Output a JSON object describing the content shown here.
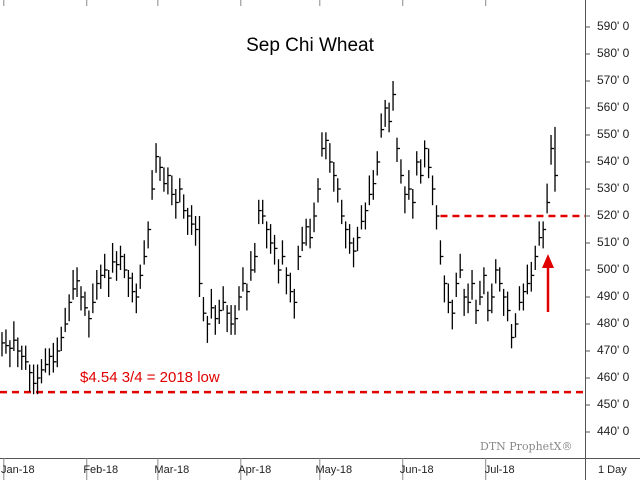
{
  "chart_data": {
    "type": "hlc",
    "title": "Sep Chi Wheat",
    "categories": [
      null,
      null,
      null,
      null,
      "Jan-18",
      null,
      null,
      null,
      null,
      null,
      null,
      null,
      null,
      null,
      null,
      null,
      null,
      null,
      null,
      null,
      null,
      null,
      null,
      null,
      null,
      "Feb-18",
      null,
      null,
      null,
      null,
      null,
      null,
      null,
      null,
      null,
      null,
      null,
      null,
      null,
      null,
      null,
      null,
      null,
      "Mar-18",
      null,
      null,
      null,
      null,
      null,
      null,
      null,
      null,
      null,
      null,
      null,
      null,
      null,
      null,
      null,
      null,
      null,
      null,
      null,
      null,
      "Apr-18",
      null,
      null,
      null,
      null,
      null,
      null,
      null,
      null,
      null,
      null,
      null,
      null,
      null,
      null,
      null,
      null,
      null,
      null,
      null,
      "May-18",
      null,
      null,
      null,
      null,
      null,
      null,
      null,
      null,
      null,
      null,
      null,
      null,
      null,
      null,
      null,
      null,
      null,
      null,
      null,
      null,
      "Jun-18",
      null,
      null,
      null,
      null,
      null,
      null,
      null,
      null,
      null,
      null,
      null,
      null,
      null,
      null,
      null,
      null,
      null,
      null,
      null,
      null,
      "Jul-18",
      null,
      null,
      null,
      null,
      null,
      null,
      null,
      null,
      null,
      null,
      null,
      null,
      null,
      null
    ],
    "high": [
      477,
      478,
      474,
      481,
      475,
      472,
      472,
      465,
      465,
      465,
      467,
      471,
      471,
      473,
      475,
      479,
      486,
      491,
      500,
      501,
      494,
      492,
      485,
      495,
      500,
      502,
      506,
      500,
      510,
      507,
      509,
      506,
      500,
      499,
      495,
      502,
      511,
      518,
      537,
      547,
      542,
      538,
      538,
      535,
      530,
      534,
      528,
      523,
      524,
      520,
      520,
      490,
      483,
      493,
      487,
      489,
      494,
      487,
      487,
      487,
      494,
      501,
      495,
      507,
      510,
      526,
      526,
      518,
      517,
      513,
      504,
      511,
      501,
      499,
      493,
      509,
      516,
      519,
      519,
      525,
      534,
      551,
      551,
      547,
      540,
      534,
      526,
      518,
      517,
      512,
      516,
      524,
      525,
      535,
      537,
      544,
      558,
      563,
      562,
      570,
      549,
      541,
      531,
      537,
      530,
      544,
      541,
      548,
      545,
      535,
      524,
      511,
      498,
      495,
      489,
      499,
      506,
      493,
      495,
      500,
      489,
      496,
      501,
      492,
      495,
      504,
      501,
      493,
      492,
      480,
      484,
      494,
      495,
      502,
      503,
      509,
      518,
      518,
      532,
      550,
      553
    ],
    "low": [
      468,
      469,
      464,
      470,
      464,
      463,
      463,
      455,
      454,
      454,
      458,
      462,
      461,
      462,
      464,
      470,
      477,
      481,
      489,
      490,
      485,
      483,
      475,
      484,
      489,
      493,
      497,
      490,
      499,
      496,
      500,
      497,
      490,
      488,
      484,
      493,
      502,
      508,
      526,
      536,
      533,
      529,
      528,
      524,
      519,
      525,
      519,
      513,
      513,
      509,
      490,
      481,
      473,
      482,
      476,
      480,
      485,
      477,
      476,
      476,
      485,
      492,
      485,
      496,
      499,
      517,
      517,
      508,
      506,
      502,
      495,
      502,
      491,
      488,
      482,
      500,
      507,
      509,
      508,
      514,
      525,
      542,
      541,
      536,
      529,
      525,
      517,
      508,
      506,
      501,
      507,
      515,
      515,
      524,
      526,
      535,
      549,
      553,
      551,
      559,
      540,
      532,
      521,
      526,
      519,
      535,
      532,
      538,
      534,
      524,
      515,
      502,
      488,
      484,
      478,
      490,
      497,
      483,
      484,
      489,
      480,
      487,
      491,
      481,
      484,
      495,
      492,
      483,
      481,
      471,
      475,
      485,
      485,
      491,
      492,
      500,
      509,
      508,
      521,
      539,
      529
    ],
    "close": [
      473,
      472,
      471,
      474,
      470,
      468,
      466,
      462,
      458,
      460,
      463,
      465,
      468,
      466,
      470,
      475,
      480,
      488,
      493,
      496,
      490,
      486,
      482,
      488,
      495,
      498,
      500,
      497,
      503,
      502,
      505,
      500,
      497,
      492,
      490,
      498,
      505,
      515,
      530,
      542,
      538,
      532,
      535,
      528,
      525,
      530,
      522,
      520,
      517,
      515,
      495,
      484,
      480,
      486,
      482,
      485,
      488,
      484,
      480,
      482,
      490,
      495,
      492,
      500,
      505,
      522,
      520,
      515,
      510,
      508,
      500,
      505,
      498,
      492,
      488,
      505,
      510,
      516,
      512,
      520,
      530,
      545,
      548,
      540,
      535,
      530,
      520,
      515,
      510,
      507,
      512,
      518,
      522,
      528,
      532,
      540,
      552,
      560,
      555,
      565,
      545,
      535,
      528,
      530,
      525,
      540,
      535,
      545,
      538,
      530,
      520,
      505,
      495,
      488,
      484,
      495,
      500,
      490,
      488,
      495,
      485,
      490,
      498,
      485,
      490,
      500,
      495,
      490,
      485,
      475,
      480,
      488,
      492,
      495,
      498,
      505,
      512,
      515,
      525,
      545,
      535
    ],
    "color": "#000000",
    "ylim": [
      430,
      600
    ],
    "yticks": [
      {
        "value": 440,
        "label": "440' 0"
      },
      {
        "value": 450,
        "label": "450' 0"
      },
      {
        "value": 460,
        "label": "460' 0"
      },
      {
        "value": 470,
        "label": "470' 0"
      },
      {
        "value": 480,
        "label": "480' 0"
      },
      {
        "value": 490,
        "label": "490' 0"
      },
      {
        "value": 500,
        "label": "500' 0"
      },
      {
        "value": 510,
        "label": "510' 0"
      },
      {
        "value": 520,
        "label": "520' 0"
      },
      {
        "value": 530,
        "label": "530' 0"
      },
      {
        "value": 540,
        "label": "540' 0"
      },
      {
        "value": 550,
        "label": "550' 0"
      },
      {
        "value": 560,
        "label": "560' 0"
      },
      {
        "value": 570,
        "label": "570' 0"
      },
      {
        "value": 580,
        "label": "580' 0"
      },
      {
        "value": 590,
        "label": "590' 0"
      }
    ],
    "reference_lines": [
      {
        "value": 454.75,
        "color": "#e00000",
        "label": "$4.54 3/4 = 2018 low"
      },
      {
        "value": 520,
        "color": "#e00000"
      }
    ],
    "watermark": "DTN ProphetX®",
    "interval": "1 Day"
  }
}
